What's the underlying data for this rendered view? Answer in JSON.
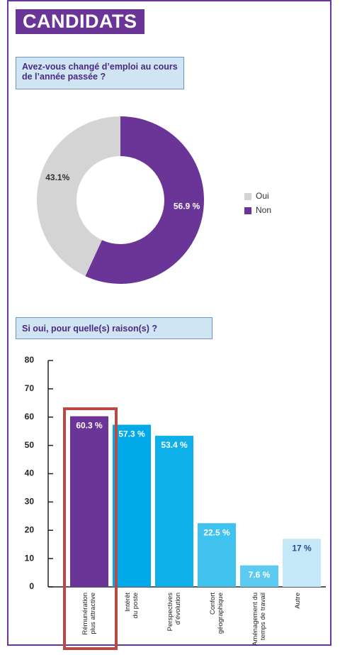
{
  "header": "CANDIDATS",
  "chart_data": [
    {
      "type": "pie",
      "title": "Avez-vous changé d’emploi au cours de l’année passée ?",
      "categories": [
        "Oui",
        "Non"
      ],
      "values": [
        43.1,
        56.9
      ],
      "value_labels": [
        "43.1%",
        "56.9 %"
      ],
      "colors": [
        "#d4d4d4",
        "#6b3597"
      ],
      "donut": true,
      "legend": "right"
    },
    {
      "type": "bar",
      "title": "Si oui, pour quelle(s) raison(s) ?",
      "categories": [
        "Rémunération\nplus attractive",
        "Intérêt\ndu poste",
        "Perspectives\nd’évolution",
        "Confort\ngéographique",
        "Aménagement du\ntemps de travail",
        "Autre"
      ],
      "values": [
        60.3,
        57.3,
        53.4,
        22.5,
        7.6,
        17
      ],
      "value_labels": [
        "60.3 %",
        "57.3 %",
        "53.4 %",
        "22.5 %",
        "7.6 %",
        "17 %"
      ],
      "colors": [
        "#6b3597",
        "#00a9e8",
        "#0fb0ea",
        "#40c2ef",
        "#5dcbf1",
        "#c6e9f9"
      ],
      "ylim": [
        0,
        80
      ],
      "yticks": [
        0,
        10,
        20,
        30,
        40,
        50,
        60,
        70,
        80
      ],
      "grid": false
    }
  ]
}
